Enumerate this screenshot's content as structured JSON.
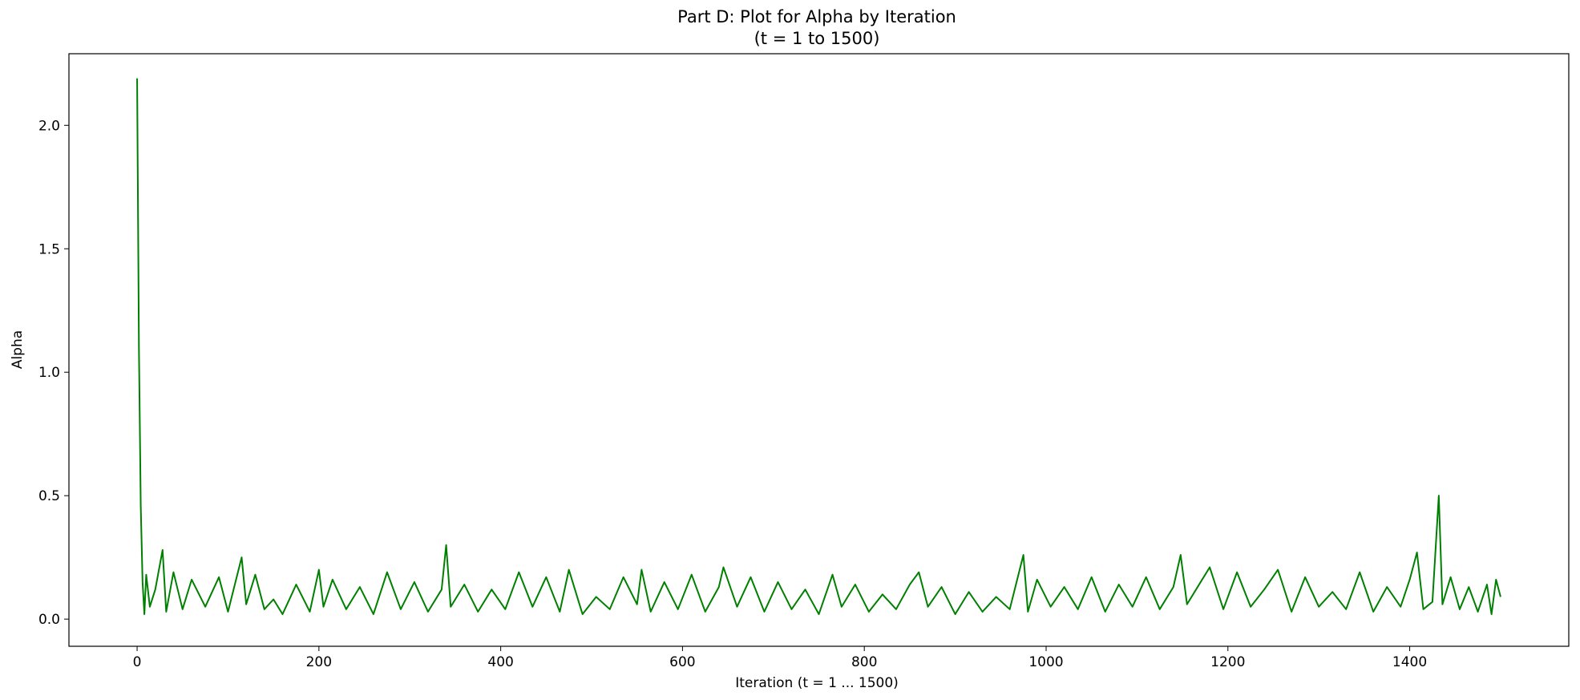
{
  "chart_data": {
    "type": "line",
    "title": "Part D: Plot for Alpha by Iteration",
    "subtitle": "(t = 1 to 1500)",
    "xlabel": "Iteration (t = 1 ... 1500)",
    "ylabel": "Alpha",
    "xlim": [
      -75,
      1575
    ],
    "ylim": [
      -0.11,
      2.29
    ],
    "xticks": [
      0,
      200,
      400,
      600,
      800,
      1000,
      1200,
      1400
    ],
    "xtick_labels": [
      "0",
      "200",
      "400",
      "600",
      "800",
      "1000",
      "1200",
      "1400"
    ],
    "yticks": [
      0.0,
      0.5,
      1.0,
      1.5,
      2.0
    ],
    "ytick_labels": [
      "0.0",
      "0.5",
      "1.0",
      "1.5",
      "2.0"
    ],
    "grid": false,
    "legend": "none",
    "series": [
      {
        "color": "#008000",
        "x": [
          0,
          2,
          4,
          6,
          8,
          10,
          14,
          20,
          28,
          32,
          40,
          50,
          60,
          75,
          90,
          100,
          115,
          120,
          130,
          140,
          150,
          160,
          175,
          190,
          200,
          205,
          215,
          230,
          245,
          260,
          275,
          290,
          305,
          320,
          335,
          340,
          345,
          360,
          375,
          390,
          405,
          420,
          435,
          450,
          465,
          475,
          490,
          505,
          520,
          535,
          550,
          555,
          565,
          580,
          595,
          610,
          625,
          640,
          645,
          660,
          675,
          690,
          705,
          720,
          735,
          750,
          765,
          775,
          790,
          805,
          820,
          835,
          850,
          860,
          870,
          885,
          900,
          915,
          930,
          945,
          960,
          975,
          980,
          990,
          1005,
          1020,
          1035,
          1050,
          1065,
          1080,
          1095,
          1110,
          1125,
          1140,
          1148,
          1155,
          1170,
          1180,
          1195,
          1210,
          1225,
          1240,
          1255,
          1270,
          1285,
          1300,
          1315,
          1330,
          1345,
          1360,
          1375,
          1390,
          1400,
          1408,
          1415,
          1425,
          1432,
          1436,
          1445,
          1455,
          1465,
          1475,
          1485,
          1490,
          1495,
          1500
        ],
        "values": [
          2.19,
          1.1,
          0.46,
          0.15,
          0.02,
          0.18,
          0.05,
          0.12,
          0.28,
          0.03,
          0.19,
          0.04,
          0.16,
          0.05,
          0.17,
          0.03,
          0.25,
          0.06,
          0.18,
          0.04,
          0.08,
          0.02,
          0.14,
          0.03,
          0.2,
          0.05,
          0.16,
          0.04,
          0.13,
          0.02,
          0.19,
          0.04,
          0.15,
          0.03,
          0.12,
          0.3,
          0.05,
          0.14,
          0.03,
          0.12,
          0.04,
          0.19,
          0.05,
          0.17,
          0.03,
          0.2,
          0.02,
          0.09,
          0.04,
          0.17,
          0.06,
          0.2,
          0.03,
          0.15,
          0.04,
          0.18,
          0.03,
          0.13,
          0.21,
          0.05,
          0.17,
          0.03,
          0.15,
          0.04,
          0.12,
          0.02,
          0.18,
          0.05,
          0.14,
          0.03,
          0.1,
          0.04,
          0.14,
          0.19,
          0.05,
          0.13,
          0.02,
          0.11,
          0.03,
          0.09,
          0.04,
          0.26,
          0.03,
          0.16,
          0.05,
          0.13,
          0.04,
          0.17,
          0.03,
          0.14,
          0.05,
          0.17,
          0.04,
          0.13,
          0.26,
          0.06,
          0.15,
          0.21,
          0.04,
          0.19,
          0.05,
          0.12,
          0.2,
          0.03,
          0.17,
          0.05,
          0.11,
          0.04,
          0.19,
          0.03,
          0.13,
          0.05,
          0.16,
          0.27,
          0.04,
          0.07,
          0.5,
          0.06,
          0.17,
          0.04,
          0.13,
          0.03,
          0.14,
          0.02,
          0.16,
          0.09
        ]
      }
    ]
  }
}
